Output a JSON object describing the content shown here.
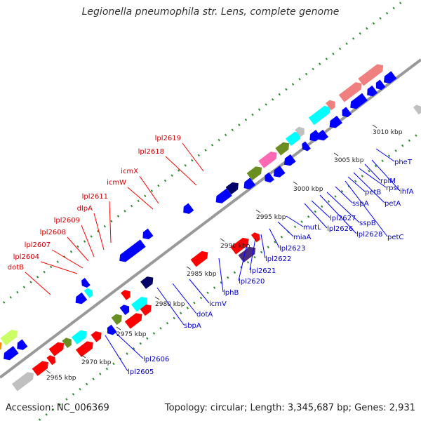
{
  "title": "Legionella pneumophila str. Lens, complete genome",
  "footer": {
    "accession": "Accession: NC_006369",
    "summary": "Topology: circular; Length: 3,345,687 bp; Genes: 2,931"
  },
  "colors": {
    "backbone": "#999999",
    "dots": "#2e8b2e",
    "red": "#ff0000",
    "blue": "#0000ff",
    "navy": "#000066",
    "indigo": "#4b2d7f",
    "olive": "#6b8e23",
    "cyan": "#00ffff",
    "pink": "#ff69b4",
    "salmon": "#f08080",
    "grey": "#c0c0c0",
    "orange": "#ff8c00",
    "lime": "#ccff66",
    "label_red": "#cc0000",
    "label_blue": "#0000cc",
    "leader_red": "#ff0000",
    "leader_blue": "#0000ff"
  },
  "ticks": [
    "2965 kbp",
    "2970 kbp",
    "2975 kbp",
    "2980 kbp",
    "2985 kbp",
    "2990 kbp",
    "2995 kbp",
    "3000 kbp",
    "3005 kbp",
    "3010 kbp"
  ],
  "labels_top": [
    "dotB",
    "lpl2604",
    "lpl2607",
    "lpl2608",
    "lpl2609",
    "dlpA",
    "lpl2611",
    "icmW",
    "icmX",
    "lpl2618",
    "lpl2619"
  ],
  "labels_bottom": [
    "lpl2605",
    "lpl2606",
    "sbpA",
    "dotA",
    "icmV",
    "lphB",
    "lpl2620",
    "lpl2621",
    "lpl2622",
    "lpl2623",
    "miaA",
    "mutL",
    "lpl2626",
    "lpl2627",
    "lpl2628",
    "sspB",
    "sspA",
    "petC",
    "petB",
    "petA",
    "rpsI",
    "rplM",
    "ihfA",
    "pheT"
  ]
}
